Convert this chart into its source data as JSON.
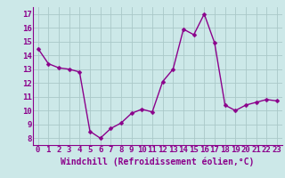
{
  "x": [
    0,
    1,
    2,
    3,
    4,
    5,
    6,
    7,
    8,
    9,
    10,
    11,
    12,
    13,
    14,
    15,
    16,
    17,
    18,
    19,
    20,
    21,
    22,
    23
  ],
  "y": [
    14.5,
    13.4,
    13.1,
    13.0,
    12.8,
    8.5,
    8.0,
    8.7,
    9.1,
    9.8,
    10.1,
    9.9,
    12.1,
    13.0,
    15.9,
    15.5,
    17.0,
    14.9,
    10.4,
    10.0,
    10.4,
    10.6,
    10.8,
    10.7
  ],
  "line_color": "#8B008B",
  "marker_color": "#8B008B",
  "bg_color": "#cce8e8",
  "grid_color": "#aac8c8",
  "xlabel": "Windchill (Refroidissement éolien,°C)",
  "ylim": [
    7.5,
    17.5
  ],
  "xlim": [
    -0.5,
    23.5
  ],
  "yticks": [
    8,
    9,
    10,
    11,
    12,
    13,
    14,
    15,
    16,
    17
  ],
  "xticks": [
    0,
    1,
    2,
    3,
    4,
    5,
    6,
    7,
    8,
    9,
    10,
    11,
    12,
    13,
    14,
    15,
    16,
    17,
    18,
    19,
    20,
    21,
    22,
    23
  ],
  "xlabel_fontsize": 7,
  "tick_fontsize": 6.5,
  "line_width": 1.0,
  "marker_size": 2.5
}
